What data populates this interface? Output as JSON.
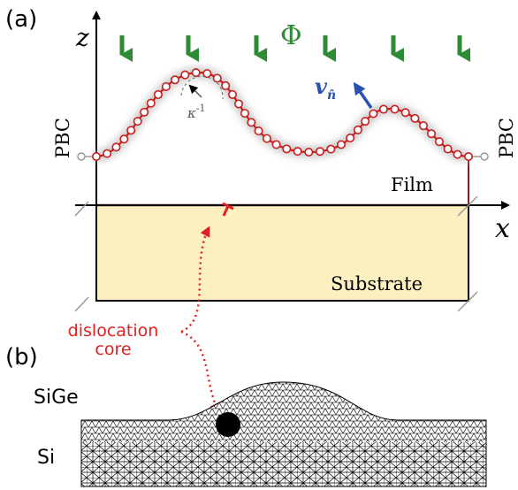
{
  "panel_a": {
    "label": "(a)",
    "z_axis": "z",
    "x_axis": "x",
    "flux": "Φ",
    "velocity": {
      "main": "v",
      "sub": "n̂"
    },
    "curvature": {
      "main": "κ",
      "sup": "-1"
    },
    "pbc_left": "PBC",
    "pbc_right": "PBC",
    "film": "Film",
    "substrate": "Substrate",
    "dislocation": [
      "dislocation",
      "core"
    ]
  },
  "panel_b": {
    "label": "(b)",
    "layers": [
      "SiGe",
      "Si"
    ]
  }
}
